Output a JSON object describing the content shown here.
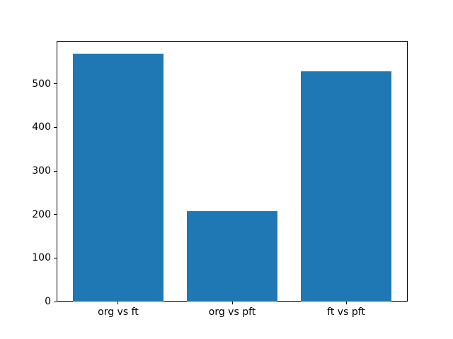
{
  "chart_data": {
    "type": "bar",
    "title": "",
    "xlabel": "",
    "ylabel": "",
    "categories": [
      "org vs ft",
      "org vs pft",
      "ft vs pft"
    ],
    "values": [
      570,
      207,
      528
    ],
    "yticks": [
      0,
      100,
      200,
      300,
      400,
      500
    ],
    "ylim": [
      0,
      598.5
    ],
    "bar_color": "#1f77b4",
    "bar_width_fraction": 0.8,
    "x_margin_fraction": 0.05,
    "grid": false,
    "legend": null,
    "background_color": "#ffffff",
    "spine_color": "#000000",
    "tick_label_color": "#000000"
  }
}
